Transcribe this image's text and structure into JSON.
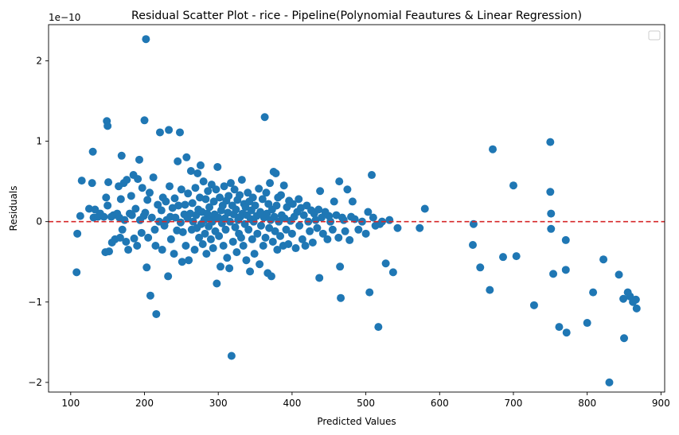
{
  "chart_data": {
    "type": "scatter",
    "title": "Residual Scatter Plot - rice  - Pipeline(Polynomial Feautures & Linear Regression)",
    "xlabel": "Predicted Values",
    "ylabel": "Residuals",
    "y_offset_label": "1e−10",
    "xlim": [
      70,
      905
    ],
    "ylim": [
      -2.12,
      2.45
    ],
    "y_scale_multiplier": 1e-10,
    "x_ticks": [
      100,
      200,
      300,
      400,
      500,
      600,
      700,
      800,
      900
    ],
    "y_ticks": [
      -2,
      -1,
      0,
      1,
      2
    ],
    "grid": false,
    "legend": "top-right (empty)",
    "point_color": "#1f77b4",
    "reference_line": {
      "y": 0,
      "color": "#d62728",
      "style": "dashed"
    },
    "series": [
      {
        "points": [
          [
            108,
            -0.63
          ],
          [
            109,
            -0.15
          ],
          [
            113,
            0.07
          ],
          [
            115,
            0.51
          ],
          [
            125,
            0.16
          ],
          [
            129,
            0.48
          ],
          [
            130,
            0.87
          ],
          [
            131,
            0.05
          ],
          [
            133,
            0.15
          ],
          [
            137,
            0.06
          ],
          [
            140,
            0.1
          ],
          [
            145,
            0.06
          ],
          [
            147,
            -0.38
          ],
          [
            148,
            0.3
          ],
          [
            149,
            1.25
          ],
          [
            150,
            1.19
          ],
          [
            150,
            0.2
          ],
          [
            151,
            0.49
          ],
          [
            152,
            -0.37
          ],
          [
            155,
            0.06
          ],
          [
            156,
            -0.26
          ],
          [
            158,
            0.08
          ],
          [
            160,
            -0.22
          ],
          [
            163,
            0.1
          ],
          [
            165,
            0.44
          ],
          [
            166,
            0.05
          ],
          [
            167,
            -0.2
          ],
          [
            168,
            0.28
          ],
          [
            169,
            0.82
          ],
          [
            170,
            -0.1
          ],
          [
            172,
            0.48
          ],
          [
            173,
            0.02
          ],
          [
            175,
            -0.25
          ],
          [
            176,
            0.52
          ],
          [
            178,
            -0.35
          ],
          [
            180,
            0.1
          ],
          [
            182,
            0.32
          ],
          [
            183,
            0.08
          ],
          [
            185,
            0.58
          ],
          [
            186,
            -0.21
          ],
          [
            188,
            0.16
          ],
          [
            190,
            -0.3
          ],
          [
            191,
            0.53
          ],
          [
            193,
            0.77
          ],
          [
            194,
            0.02
          ],
          [
            196,
            -0.14
          ],
          [
            197,
            0.42
          ],
          [
            199,
            0.07
          ],
          [
            200,
            1.26
          ],
          [
            201,
            0.11
          ],
          [
            202,
            2.27
          ],
          [
            203,
            -0.57
          ],
          [
            204,
            0.27
          ],
          [
            205,
            -0.2
          ],
          [
            207,
            0.36
          ],
          [
            208,
            -0.92
          ],
          [
            210,
            0.05
          ],
          [
            212,
            0.55
          ],
          [
            214,
            -0.1
          ],
          [
            215,
            -0.3
          ],
          [
            216,
            -1.15
          ],
          [
            218,
            0.21
          ],
          [
            220,
            0.0
          ],
          [
            221,
            1.11
          ],
          [
            223,
            0.14
          ],
          [
            224,
            -0.35
          ],
          [
            225,
            0.3
          ],
          [
            227,
            -0.05
          ],
          [
            229,
            0.25
          ],
          [
            230,
            0.02
          ],
          [
            232,
            -0.68
          ],
          [
            233,
            1.14
          ],
          [
            234,
            0.44
          ],
          [
            235,
            0.06
          ],
          [
            236,
            -0.22
          ],
          [
            238,
            0.17
          ],
          [
            240,
            -0.4
          ],
          [
            241,
            0.29
          ],
          [
            242,
            0.05
          ],
          [
            244,
            -0.11
          ],
          [
            245,
            0.75
          ],
          [
            246,
            0.2
          ],
          [
            248,
            1.11
          ],
          [
            249,
            -0.01
          ],
          [
            250,
            0.4
          ],
          [
            251,
            -0.5
          ],
          [
            252,
            -0.13
          ],
          [
            254,
            0.09
          ],
          [
            255,
            0.21
          ],
          [
            256,
            -0.3
          ],
          [
            257,
            0.8
          ],
          [
            258,
            0.05
          ],
          [
            259,
            0.35
          ],
          [
            260,
            -0.48
          ],
          [
            262,
            0.1
          ],
          [
            263,
            0.63
          ],
          [
            264,
            -0.1
          ],
          [
            265,
            0.23
          ],
          [
            266,
            0.0
          ],
          [
            268,
            -0.35
          ],
          [
            269,
            0.42
          ],
          [
            270,
            0.08
          ],
          [
            271,
            -0.08
          ],
          [
            272,
            0.6
          ],
          [
            273,
            0.15
          ],
          [
            274,
            -0.2
          ],
          [
            275,
            0.3
          ],
          [
            276,
            0.7
          ],
          [
            277,
            -0.03
          ],
          [
            278,
            0.12
          ],
          [
            279,
            -0.28
          ],
          [
            280,
            0.5
          ],
          [
            281,
            0.02
          ],
          [
            282,
            -0.15
          ],
          [
            283,
            0.28
          ],
          [
            284,
            -0.4
          ],
          [
            285,
            0.1
          ],
          [
            286,
            0.38
          ],
          [
            287,
            -0.06
          ],
          [
            288,
            0.18
          ],
          [
            289,
            0.03
          ],
          [
            290,
            -0.22
          ],
          [
            291,
            0.46
          ],
          [
            292,
            0.0
          ],
          [
            293,
            -0.33
          ],
          [
            294,
            0.25
          ],
          [
            295,
            0.09
          ],
          [
            296,
            -0.12
          ],
          [
            297,
            0.4
          ],
          [
            298,
            -0.77
          ],
          [
            299,
            0.68
          ],
          [
            300,
            0.05
          ],
          [
            301,
            -0.18
          ],
          [
            302,
            0.3
          ],
          [
            303,
            -0.56
          ],
          [
            304,
            0.14
          ],
          [
            305,
            -0.02
          ],
          [
            306,
            0.2
          ],
          [
            307,
            -0.3
          ],
          [
            308,
            0.44
          ],
          [
            309,
            0.04
          ],
          [
            310,
            -0.1
          ],
          [
            311,
            0.26
          ],
          [
            312,
            -0.45
          ],
          [
            313,
            0.11
          ],
          [
            314,
            0.32
          ],
          [
            315,
            -0.58
          ],
          [
            316,
            0.0
          ],
          [
            317,
            0.48
          ],
          [
            318,
            -1.67
          ],
          [
            319,
            0.2
          ],
          [
            320,
            -0.25
          ],
          [
            321,
            0.09
          ],
          [
            322,
            0.4
          ],
          [
            323,
            -0.07
          ],
          [
            324,
            0.15
          ],
          [
            325,
            -0.38
          ],
          [
            326,
            0.27
          ],
          [
            327,
            0.02
          ],
          [
            328,
            -0.15
          ],
          [
            329,
            0.33
          ],
          [
            330,
            0.06
          ],
          [
            331,
            -0.2
          ],
          [
            332,
            0.52
          ],
          [
            333,
            0.1
          ],
          [
            334,
            -0.3
          ],
          [
            335,
            0.22
          ],
          [
            336,
            -0.03
          ],
          [
            337,
            0.18
          ],
          [
            338,
            -0.48
          ],
          [
            339,
            0.08
          ],
          [
            340,
            0.36
          ],
          [
            341,
            -0.1
          ],
          [
            342,
            0.25
          ],
          [
            343,
            -0.62
          ],
          [
            344,
            0.03
          ],
          [
            345,
            0.14
          ],
          [
            346,
            -0.22
          ],
          [
            347,
            0.3
          ],
          [
            348,
            0.0
          ],
          [
            349,
            -0.4
          ],
          [
            350,
            0.2
          ],
          [
            352,
            0.07
          ],
          [
            353,
            -0.15
          ],
          [
            355,
            0.41
          ],
          [
            356,
            -0.53
          ],
          [
            357,
            0.12
          ],
          [
            358,
            -0.05
          ],
          [
            360,
            0.28
          ],
          [
            361,
            -0.3
          ],
          [
            362,
            0.05
          ],
          [
            363,
            1.3
          ],
          [
            364,
            -0.2
          ],
          [
            365,
            0.36
          ],
          [
            366,
            0.1
          ],
          [
            367,
            -0.64
          ],
          [
            368,
            0.22
          ],
          [
            369,
            -0.08
          ],
          [
            370,
            0.48
          ],
          [
            371,
            0.02
          ],
          [
            372,
            -0.68
          ],
          [
            373,
            0.15
          ],
          [
            374,
            -0.25
          ],
          [
            375,
            0.62
          ],
          [
            376,
            0.06
          ],
          [
            377,
            -0.12
          ],
          [
            378,
            0.6
          ],
          [
            379,
            0.2
          ],
          [
            380,
            -0.35
          ],
          [
            381,
            0.3
          ],
          [
            382,
            0.0
          ],
          [
            384,
            -0.18
          ],
          [
            385,
            0.33
          ],
          [
            386,
            0.08
          ],
          [
            388,
            -0.3
          ],
          [
            389,
            0.45
          ],
          [
            390,
            0.04
          ],
          [
            392,
            -0.1
          ],
          [
            393,
            0.18
          ],
          [
            395,
            -0.28
          ],
          [
            396,
            0.26
          ],
          [
            398,
            0.01
          ],
          [
            400,
            -0.15
          ],
          [
            401,
            0.22
          ],
          [
            403,
            0.06
          ],
          [
            405,
            -0.33
          ],
          [
            407,
            0.12
          ],
          [
            409,
            0.28
          ],
          [
            410,
            -0.05
          ],
          [
            412,
            0.17
          ],
          [
            414,
            -0.22
          ],
          [
            416,
            0.08
          ],
          [
            418,
            -0.3
          ],
          [
            420,
            0.2
          ],
          [
            422,
            0.0
          ],
          [
            424,
            -0.12
          ],
          [
            426,
            0.14
          ],
          [
            428,
            -0.26
          ],
          [
            430,
            0.1
          ],
          [
            432,
            0.02
          ],
          [
            434,
            -0.08
          ],
          [
            436,
            0.15
          ],
          [
            437,
            -0.7
          ],
          [
            438,
            0.38
          ],
          [
            440,
            0.05
          ],
          [
            442,
            -0.15
          ],
          [
            445,
            0.12
          ],
          [
            448,
            -0.22
          ],
          [
            450,
            0.07
          ],
          [
            452,
            0.0
          ],
          [
            455,
            -0.1
          ],
          [
            457,
            0.25
          ],
          [
            460,
            0.08
          ],
          [
            463,
            -0.2
          ],
          [
            464,
            0.5
          ],
          [
            465,
            -0.56
          ],
          [
            466,
            -0.95
          ],
          [
            468,
            0.05
          ],
          [
            470,
            0.02
          ],
          [
            472,
            -0.12
          ],
          [
            475,
            0.4
          ],
          [
            478,
            -0.23
          ],
          [
            480,
            0.06
          ],
          [
            482,
            0.25
          ],
          [
            485,
            0.03
          ],
          [
            490,
            -0.1
          ],
          [
            495,
            0.0
          ],
          [
            500,
            -0.15
          ],
          [
            503,
            0.12
          ],
          [
            505,
            -0.88
          ],
          [
            508,
            0.58
          ],
          [
            510,
            0.05
          ],
          [
            513,
            -0.05
          ],
          [
            517,
            -1.31
          ],
          [
            519,
            -0.03
          ],
          [
            522,
            0.0
          ],
          [
            527,
            -0.52
          ],
          [
            532,
            0.02
          ],
          [
            537,
            -0.63
          ],
          [
            543,
            -0.08
          ],
          [
            573,
            -0.08
          ],
          [
            580,
            0.16
          ],
          [
            645,
            -0.29
          ],
          [
            646,
            -0.03
          ],
          [
            655,
            -0.57
          ],
          [
            668,
            -0.85
          ],
          [
            672,
            0.9
          ],
          [
            686,
            -0.44
          ],
          [
            700,
            0.45
          ],
          [
            704,
            -0.43
          ],
          [
            728,
            -1.04
          ],
          [
            750,
            0.99
          ],
          [
            750,
            0.37
          ],
          [
            751,
            0.1
          ],
          [
            751,
            -0.09
          ],
          [
            754,
            -0.65
          ],
          [
            762,
            -1.31
          ],
          [
            771,
            -0.23
          ],
          [
            771,
            -0.6
          ],
          [
            772,
            -1.38
          ],
          [
            800,
            -1.26
          ],
          [
            808,
            -0.88
          ],
          [
            822,
            -0.47
          ],
          [
            830,
            -2.0
          ],
          [
            843,
            -0.66
          ],
          [
            849,
            -0.96
          ],
          [
            850,
            -1.45
          ],
          [
            855,
            -0.88
          ],
          [
            858,
            -0.93
          ],
          [
            862,
            -1.0
          ],
          [
            866,
            -0.97
          ],
          [
            867,
            -1.08
          ]
        ]
      }
    ]
  }
}
